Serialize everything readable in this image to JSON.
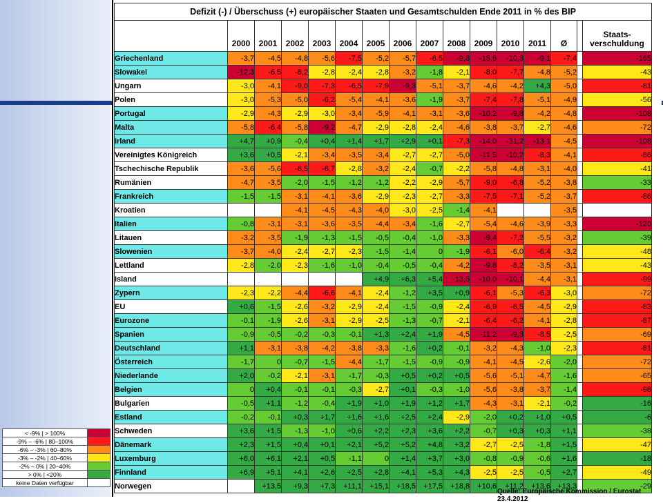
{
  "title": "Defizit (-) / Überschuss (+) europäischer Staaten und Gesamtschulden Ende 2011 in % des BIP",
  "headers": {
    "years": [
      "2000",
      "2001",
      "2002",
      "2003",
      "2004",
      "2005",
      "2006",
      "2007",
      "2008",
      "2009",
      "2010",
      "2011"
    ],
    "avg": "Ø",
    "debt_line1": "Staats-",
    "debt_line2": "verschuldung"
  },
  "legend": [
    {
      "label": "< -9%  |  > 100%",
      "color": "#cc0033"
    },
    {
      "label": "-9% – -6%  |  80–100%",
      "color": "#ff1a1a"
    },
    {
      "label": "-6% – -3%  |  60–80%",
      "color": "#ff8c1a"
    },
    {
      "label": "-3% – -2%  |  40–60%",
      "color": "#ffe81a"
    },
    {
      "label": "-2% – 0%  |  20–40%",
      "color": "#66cc33"
    },
    {
      "label": "> 0%  |  <20%",
      "color": "#33aa44"
    },
    {
      "label": "keine Daten verfügbar",
      "color": "#ffffff"
    }
  ],
  "source": "Quelle: Europäische Kommission / Eurostat 23.4.2012",
  "chart_data": {
    "type": "table",
    "title": "Defizit (-) / Überschuss (+) europäischer Staaten und Gesamtschulden Ende 2011 in % des BIP",
    "columns": [
      "2000",
      "2001",
      "2002",
      "2003",
      "2004",
      "2005",
      "2006",
      "2007",
      "2008",
      "2009",
      "2010",
      "2011",
      "Ø",
      "Staatsverschuldung"
    ],
    "rows": [
      {
        "country": "Griechenland",
        "hl": 1,
        "values": [
          "-3,7",
          "-4,5",
          "-4,8",
          "-5,6",
          "-7,5",
          "-5,2",
          "-5,7",
          "-6,5",
          "-9,8",
          "-15,6",
          "-10,3",
          "-9,1"
        ],
        "avg": "-7,4",
        "debt": "-165"
      },
      {
        "country": "Slowakei",
        "hl": 1,
        "values": [
          "-12,3",
          "-6,5",
          "-8,2",
          "-2,8",
          "-2,4",
          "-2,8",
          "-3,2",
          "-1,8",
          "-2,1",
          "-8,0",
          "-7,7",
          "-4,8"
        ],
        "avg": "-5,2",
        "debt": "-43"
      },
      {
        "country": "Ungarn",
        "hl": 0,
        "values": [
          "-3,0",
          "-4,1",
          "-9,0",
          "-7,3",
          "-6,5",
          "-7,9",
          "-9,3",
          "-5,1",
          "-3,7",
          "-4,6",
          "-4,2",
          "+4,3"
        ],
        "avg": "-5,0",
        "debt": "-81"
      },
      {
        "country": "Polen",
        "hl": 0,
        "values": [
          "-3,0",
          "-5,3",
          "-5,0",
          "-6,2",
          "-5,4",
          "-4,1",
          "-3,6",
          "-1,9",
          "-3,7",
          "-7,4",
          "-7,8",
          "-5,1"
        ],
        "avg": "-4,9",
        "debt": "-56"
      },
      {
        "country": "Portugal",
        "hl": 1,
        "values": [
          "-2,9",
          "-4,3",
          "-2,9",
          "-3,0",
          "-3,4",
          "-5,9",
          "-4,1",
          "-3,1",
          "-3,6",
          "-10,2",
          "-9,8",
          "-4,2"
        ],
        "avg": "-4,8",
        "debt": "-108"
      },
      {
        "country": "Malta",
        "hl": 1,
        "values": [
          "-5,8",
          "-6,4",
          "-5,8",
          "-9,2",
          "-4,7",
          "-2,9",
          "-2,8",
          "-2,4",
          "-4,6",
          "-3,8",
          "-3,7",
          "-2,7"
        ],
        "avg": "-4,6",
        "debt": "-72"
      },
      {
        "country": "Irland",
        "hl": 1,
        "values": [
          "+4,7",
          "+0,9",
          "-0,4",
          "+0,4",
          "+1,4",
          "+1,7",
          "+2,9",
          "+0,1",
          "-7,3",
          "-14,0",
          "-31,2",
          "-13,1"
        ],
        "avg": "-4,5",
        "debt": "-108"
      },
      {
        "country": "Vereinigtes Königreich",
        "hl": 0,
        "values": [
          "+3,6",
          "+0,5",
          "-2,1",
          "-3,4",
          "-3,5",
          "-3,4",
          "-2,7",
          "-2,7",
          "-5,0",
          "-11,5",
          "-10,2",
          "-8,3"
        ],
        "avg": "-4,1",
        "debt": "-86"
      },
      {
        "country": "Tschechische Republik",
        "hl": 0,
        "values": [
          "-3,6",
          "-5,6",
          "-6,5",
          "-6,7",
          "-2,8",
          "-3,2",
          "-2,4",
          "-0,7",
          "-2,2",
          "-5,8",
          "-4,8",
          "-3,1"
        ],
        "avg": "-4,0",
        "debt": "-41"
      },
      {
        "country": "Rumänien",
        "hl": 0,
        "values": [
          "-4,7",
          "-3,5",
          "-2,0",
          "-1,5",
          "-1,2",
          "-1,2",
          "-2,2",
          "-2,9",
          "-5,7",
          "-9,0",
          "-6,8",
          "-5,2"
        ],
        "avg": "-3,8",
        "debt": "-33"
      },
      {
        "country": "Frankreich",
        "hl": 1,
        "values": [
          "-1,5",
          "-1,5",
          "-3,1",
          "-4,1",
          "-3,6",
          "-2,9",
          "-2,3",
          "-2,7",
          "-3,3",
          "-7,5",
          "-7,1",
          "-5,2"
        ],
        "avg": "-3,7",
        "debt": "-86"
      },
      {
        "country": "Kroatien",
        "hl": 0,
        "values": [
          "",
          "",
          "-4,1",
          "-4,5",
          "-4,3",
          "-4,0",
          "-3,0",
          "-2,5",
          "-1,4",
          "-4,1",
          "",
          ""
        ],
        "avg": "-3,5",
        "debt": ""
      },
      {
        "country": "Italien",
        "hl": 1,
        "values": [
          "-0,8",
          "-3,1",
          "-3,1",
          "-3,6",
          "-3,5",
          "-4,4",
          "-3,4",
          "-1,6",
          "-2,7",
          "-5,4",
          "-4,6",
          "-3,9"
        ],
        "avg": "-3,3",
        "debt": "-120"
      },
      {
        "country": "Litauen",
        "hl": 0,
        "values": [
          "-3,2",
          "-3,5",
          "-1,9",
          "-1,3",
          "-1,5",
          "-0,5",
          "-0,4",
          "-1,0",
          "-3,3",
          "-9,4",
          "-7,2",
          "-5,5"
        ],
        "avg": "-3,2",
        "debt": "-39"
      },
      {
        "country": "Slowenien",
        "hl": 1,
        "values": [
          "-3,7",
          "-4,0",
          "-2,4",
          "-2,7",
          "-2,3",
          "-1,5",
          "-1,4",
          "0",
          "-1,9",
          "-6,1",
          "-6,0",
          "-6,4"
        ],
        "avg": "-3,2",
        "debt": "-48"
      },
      {
        "country": "Lettland",
        "hl": 0,
        "values": [
          "-2,8",
          "-2,0",
          "-2,3",
          "-1,6",
          "-1,0",
          "-0,4",
          "-0,5",
          "-0,4",
          "-4,2",
          "-9,8",
          "-8,2",
          "-3,5"
        ],
        "avg": "-3,1",
        "debt": "-43"
      },
      {
        "country": "Island",
        "hl": 0,
        "values": [
          "",
          "",
          "",
          "",
          "",
          "+4,9",
          "+6,3",
          "+5,4",
          "-13,5",
          "-10,0",
          "-10,1",
          "-4,4"
        ],
        "avg": "-3,1",
        "debt": "-99"
      },
      {
        "country": "Zypern",
        "hl": 1,
        "values": [
          "-2,3",
          "-2,2",
          "-4,4",
          "-6,6",
          "-4,1",
          "-2,4",
          "-1,2",
          "+3,5",
          "+0,9",
          "-6,1",
          "-5,3",
          "-6,3"
        ],
        "avg": "-3,0",
        "debt": "-72"
      },
      {
        "country": "EU",
        "hl": 0,
        "values": [
          "+0,6",
          "-1,5",
          "-2,6",
          "-3,2",
          "-2,9",
          "-2,4",
          "-1,5",
          "-0,9",
          "-2,4",
          "-6,9",
          "-6,5",
          "-4,5"
        ],
        "avg": "-2,9",
        "debt": "-83"
      },
      {
        "country": "Eurozone",
        "hl": 1,
        "values": [
          "-0,1",
          "-1,9",
          "-2,6",
          "-3,1",
          "-2,9",
          "-2,5",
          "-1,3",
          "-0,7",
          "-2,1",
          "-6,4",
          "-6,2",
          "-4,1"
        ],
        "avg": "-2,8",
        "debt": "-87"
      },
      {
        "country": "Spanien",
        "hl": 1,
        "values": [
          "-0,9",
          "-0,5",
          "-0,2",
          "-0,3",
          "-0,1",
          "+1,3",
          "+2,4",
          "+1,9",
          "-4,5",
          "-11,2",
          "-9,3",
          "-8,5"
        ],
        "avg": "-2,5",
        "debt": "-69"
      },
      {
        "country": "Deutschland",
        "hl": 1,
        "values": [
          "+1,1",
          "-3,1",
          "-3,8",
          "-4,2",
          "-3,8",
          "-3,3",
          "-1,6",
          "+0,2",
          "-0,1",
          "-3,2",
          "-4,3",
          "-1,0"
        ],
        "avg": "-2,3",
        "debt": "-81"
      },
      {
        "country": "Österreich",
        "hl": 1,
        "values": [
          "-1,7",
          "0",
          "-0,7",
          "-1,5",
          "-4,4",
          "-1,7",
          "-1,5",
          "-0,9",
          "-0,9",
          "-4,1",
          "-4,5",
          "-2,6"
        ],
        "avg": "-2,0",
        "debt": "-72"
      },
      {
        "country": "Niederlande",
        "hl": 1,
        "values": [
          "+2,0",
          "-0,2",
          "-2,1",
          "-3,1",
          "-1,7",
          "-0,3",
          "+0,5",
          "+0,2",
          "+0,5",
          "-5,6",
          "-5,1",
          "-4,7"
        ],
        "avg": "-1,6",
        "debt": "-65"
      },
      {
        "country": "Belgien",
        "hl": 1,
        "values": [
          "0",
          "+0,4",
          "-0,1",
          "-0,1",
          "-0,3",
          "-2,7",
          "+0,1",
          "-0,3",
          "-1,0",
          "-5,6",
          "-3,8",
          "-3,7"
        ],
        "avg": "-1,4",
        "debt": "-98"
      },
      {
        "country": "Bulgarien",
        "hl": 0,
        "values": [
          "-0,5",
          "+1,1",
          "-1,2",
          "-0,4",
          "+1,9",
          "+1,0",
          "+1,9",
          "+1,2",
          "+1,7",
          "-4,3",
          "-3,1",
          "-2,1"
        ],
        "avg": "-0,2",
        "debt": "-16"
      },
      {
        "country": "Estland",
        "hl": 1,
        "values": [
          "-0,2",
          "-0,1",
          "+0,3",
          "+1,7",
          "+1,6",
          "+1,6",
          "+2,5",
          "+2,4",
          "-2,9",
          "-2,0",
          "+0,2",
          "+1,0"
        ],
        "avg": "+0,5",
        "debt": "-6"
      },
      {
        "country": "Schweden",
        "hl": 0,
        "values": [
          "+3,6",
          "+1,5",
          "-1,3",
          "-1,0",
          "+0,6",
          "+2,2",
          "+2,3",
          "+3,6",
          "+2,2",
          "-0,7",
          "+0,3",
          "+0,3"
        ],
        "avg": "+1,1",
        "debt": "-38"
      },
      {
        "country": "Dänemark",
        "hl": 1,
        "values": [
          "+2,3",
          "+1,5",
          "+0,4",
          "+0,1",
          "+2,1",
          "+5,2",
          "+5,2",
          "+4,8",
          "+3,2",
          "-2,7",
          "-2,5",
          "-1,8"
        ],
        "avg": "+1,5",
        "debt": "-47"
      },
      {
        "country": "Luxemburg",
        "hl": 1,
        "values": [
          "+6,0",
          "+6,1",
          "+2,1",
          "+0,5",
          "-1,1",
          "0",
          "+1,4",
          "+3,7",
          "+3,0",
          "-0,8",
          "-0,9",
          "-0,6"
        ],
        "avg": "+1,6",
        "debt": "-18"
      },
      {
        "country": "Finnland",
        "hl": 1,
        "values": [
          "+6,9",
          "+5,1",
          "+4,1",
          "+2,6",
          "+2,5",
          "+2,8",
          "+4,1",
          "+5,3",
          "+4,3",
          "-2,5",
          "-2,5",
          "-0,5"
        ],
        "avg": "+2,7",
        "debt": "-49"
      },
      {
        "country": "Norwegen",
        "hl": 0,
        "values": [
          "",
          "+13,5",
          "+9,3",
          "+7,3",
          "+11,1",
          "+15,1",
          "+18,5",
          "+17,5",
          "+18,8",
          "+10,6",
          "+11,2",
          "+13,6"
        ],
        "avg": "+13,3",
        "debt": "-29"
      }
    ]
  }
}
